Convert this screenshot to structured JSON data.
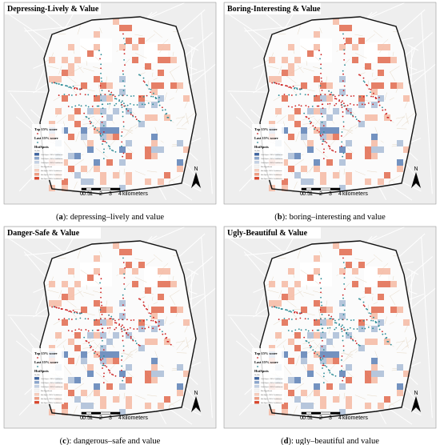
{
  "panels": [
    {
      "title": "Depressing-Lively & Value",
      "caption": {
        "open": "(",
        "label": "a",
        "rest": "): depressing–lively and value"
      }
    },
    {
      "title": "Boring-Interesting & Value",
      "caption": {
        "open": "(",
        "label": "b",
        "rest": "): boring–interesting and value"
      }
    },
    {
      "title": "Danger-Safe & Value",
      "caption": {
        "open": "(",
        "label": "c",
        "rest": "): dangerous–safe and value"
      }
    },
    {
      "title": "Ugly-Beautiful & Value",
      "caption": {
        "open": "(",
        "label": "d",
        "rest": "): ugly–beautiful and value"
      }
    }
  ],
  "legend": {
    "top": "Top 15% score",
    "last": "Last 15% score",
    "hotspots": "HotSpots",
    "field": "Gi_Bin",
    "classes": [
      "Cold Spot - 99% Confidence",
      "Cold Spot - 95% Confidence",
      "Cold Spot - 90% Confidence",
      "Not Significant",
      "Hot Spot - 90% Confidence",
      "Hot Spot - 95% Confidence",
      "Hot Spot - 99% Confidence"
    ]
  },
  "scale": {
    "labels": [
      "0",
      "0.5",
      "1",
      "2",
      "3",
      "4"
    ],
    "unit": "kilometers"
  },
  "north": "N"
}
